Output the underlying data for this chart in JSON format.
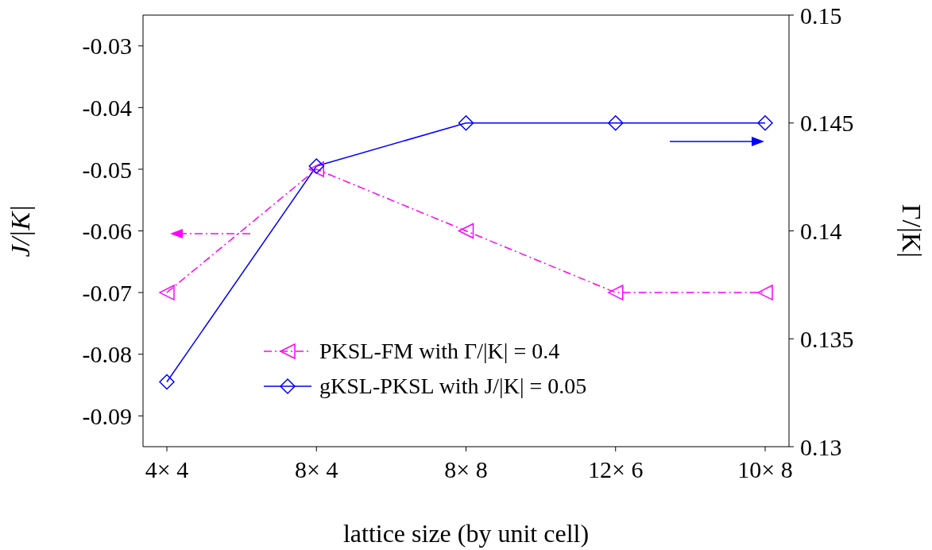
{
  "chart_data": {
    "type": "line",
    "xlabel": "lattice size (by unit cell)",
    "ylabel": "J/|K|",
    "y2label": "Γ/|K|",
    "categories": [
      "4× 4",
      "8× 4",
      "8× 8",
      "12× 6",
      "10× 8"
    ],
    "series": [
      {
        "name": "PKSL-FM with Γ/|K| = 0.4",
        "color": "#ff00ff",
        "values": [
          -0.07,
          -0.05,
          -0.06,
          -0.07,
          -0.07
        ],
        "marker": "triangle",
        "line_style": "dashdot"
      },
      {
        "name": "gKSL-PKSL with J/|K| = 0.05",
        "color": "#0000ff",
        "values": [
          0.133,
          0.143,
          0.145,
          0.145,
          0.145
        ],
        "axis": "y2",
        "marker": "diamond",
        "line_style": "solid"
      }
    ],
    "ylim": [
      -0.095,
      -0.025
    ],
    "yticks": [
      -0.09,
      -0.08,
      -0.07,
      -0.06,
      -0.05,
      -0.04,
      -0.03
    ],
    "y2lim": [
      0.13,
      0.15
    ],
    "y2ticks": [
      0.13,
      0.135,
      0.14,
      0.145,
      0.15
    ],
    "grid": false,
    "legend": "bottom"
  }
}
